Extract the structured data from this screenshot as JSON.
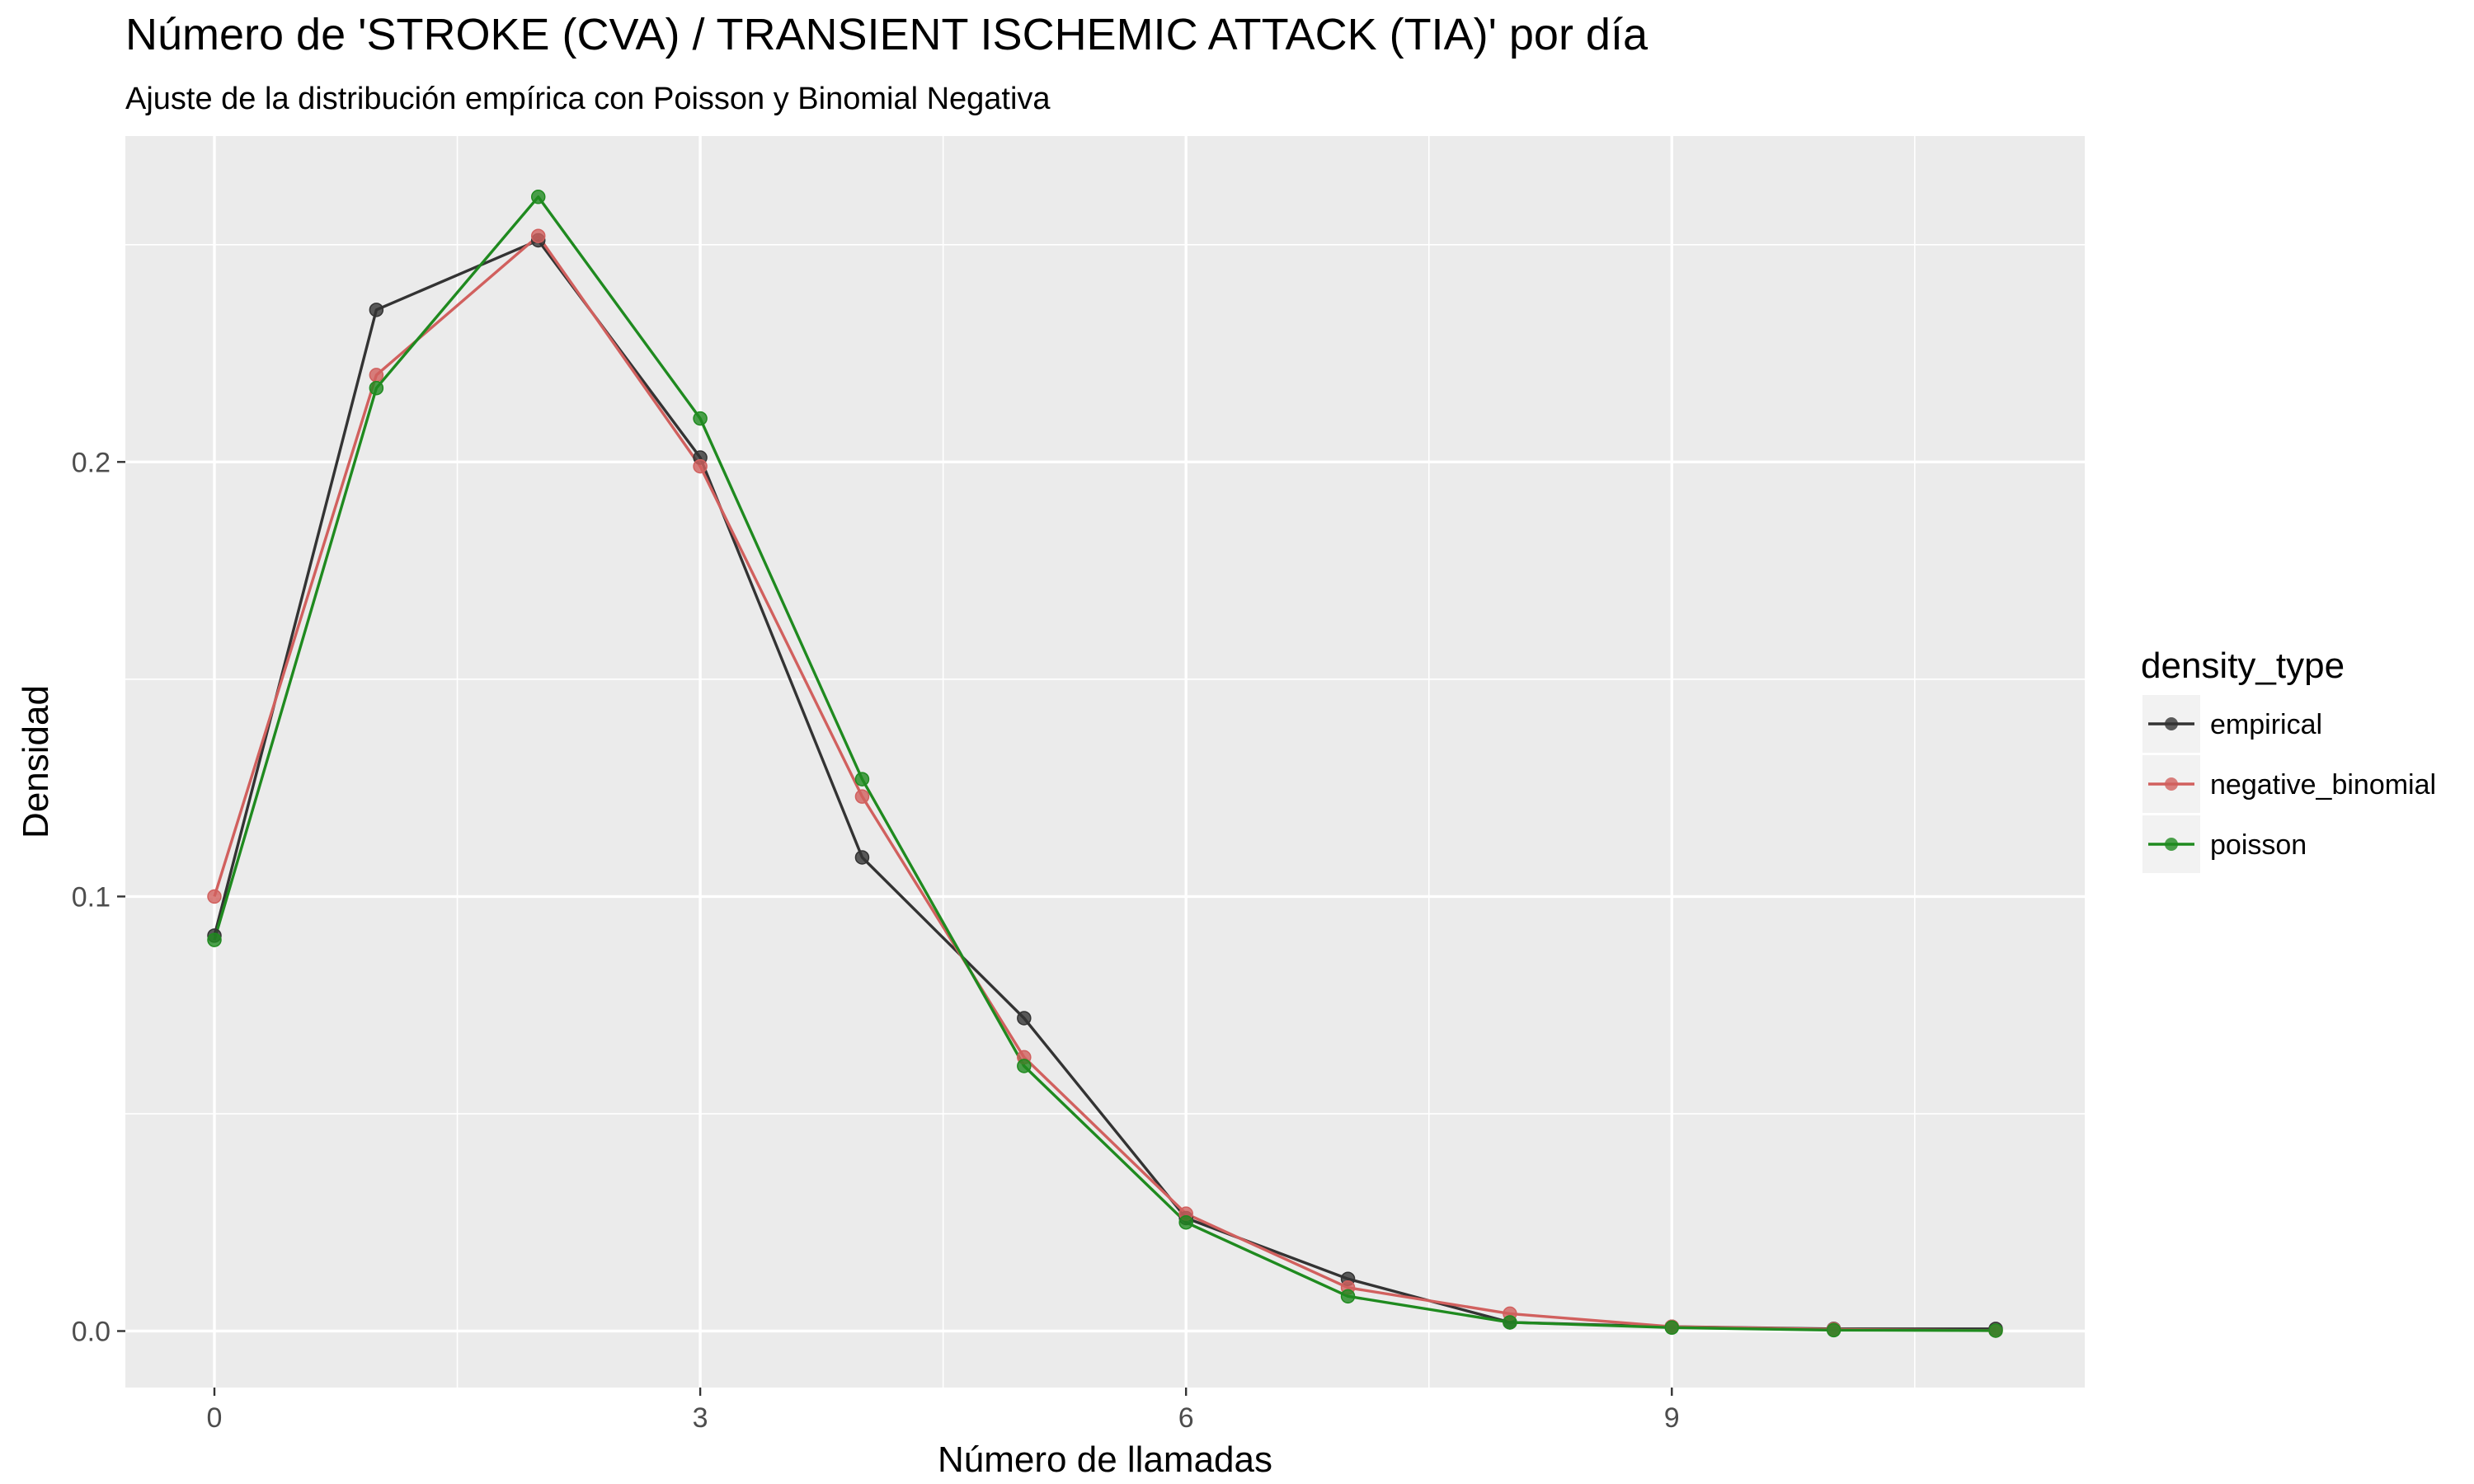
{
  "chart_data": {
    "type": "line",
    "title": "Número de 'STROKE (CVA) / TRANSIENT ISCHEMIC ATTACK (TIA)' por día",
    "subtitle": "Ajuste de la distribución empírica con Poisson y Binomial Negativa",
    "xlabel": "Número de llamadas",
    "ylabel": "Densidad",
    "xlim": [
      -0.55,
      11.55
    ],
    "ylim": [
      -0.013,
      0.275
    ],
    "x_ticks": [
      0,
      3,
      6,
      9
    ],
    "x_tick_labels": [
      "0",
      "3",
      "6",
      "9"
    ],
    "y_ticks": [
      0.0,
      0.1,
      0.2
    ],
    "y_tick_labels": [
      "0.0",
      "0.1",
      "0.2"
    ],
    "grid": true,
    "legend_position": "right",
    "legend_title": "density_type",
    "x": [
      0,
      1,
      2,
      3,
      4,
      5,
      6,
      7,
      8,
      9,
      10,
      11
    ],
    "series": [
      {
        "name": "empirical",
        "color": "#333333",
        "values": [
          0.091,
          0.235,
          0.251,
          0.201,
          0.109,
          0.072,
          0.026,
          0.012,
          0.002,
          0.001,
          0.0005,
          0.0005
        ]
      },
      {
        "name": "negative_binomial",
        "color": "#d1605e",
        "values": [
          0.1,
          0.22,
          0.252,
          0.199,
          0.123,
          0.063,
          0.027,
          0.01,
          0.004,
          0.001,
          0.0004,
          0.0001
        ]
      },
      {
        "name": "poisson",
        "color": "#1f8a1f",
        "values": [
          0.09,
          0.217,
          0.261,
          0.21,
          0.127,
          0.061,
          0.025,
          0.008,
          0.002,
          0.0008,
          0.0002,
          0.0001
        ]
      }
    ]
  }
}
